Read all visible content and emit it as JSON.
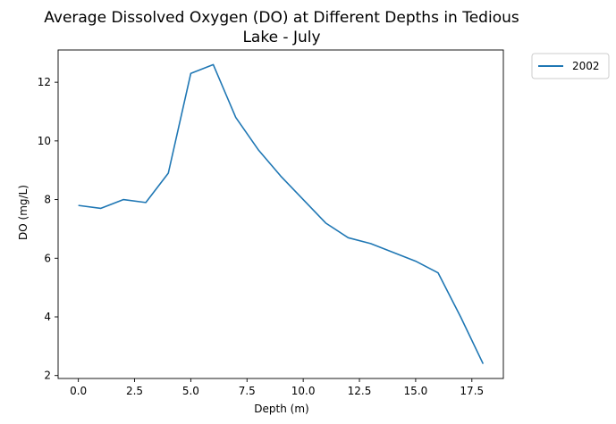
{
  "chart_data": {
    "type": "line",
    "title_line1": "Average Dissolved Oxygen (DO) at Different Depths in Tedious",
    "title_line2": "Lake - July",
    "xlabel": "Depth (m)",
    "ylabel": "DO (mg/L)",
    "xlim": [
      -0.9,
      18.9
    ],
    "ylim": [
      1.9,
      13.1
    ],
    "xticks": [
      0,
      2.5,
      5,
      7.5,
      10,
      12.5,
      15,
      17.5
    ],
    "xtick_labels": [
      "0.0",
      "2.5",
      "5.0",
      "7.5",
      "10.0",
      "12.5",
      "15.0",
      "17.5"
    ],
    "yticks": [
      2,
      4,
      6,
      8,
      10,
      12
    ],
    "ytick_labels": [
      "2",
      "4",
      "6",
      "8",
      "10",
      "12"
    ],
    "grid": false,
    "legend_position": "outside-upper-right",
    "series": [
      {
        "name": "2002",
        "color": "#1f77b4",
        "x": [
          0,
          1,
          2,
          3,
          4,
          5,
          6,
          7,
          8,
          9,
          10,
          11,
          12,
          13,
          14,
          15,
          16,
          17,
          18
        ],
        "y": [
          7.8,
          7.7,
          8.0,
          7.9,
          8.9,
          12.3,
          12.6,
          10.8,
          9.7,
          8.8,
          8.0,
          7.2,
          6.7,
          6.5,
          6.2,
          5.9,
          5.5,
          4.0,
          2.4
        ]
      }
    ]
  }
}
